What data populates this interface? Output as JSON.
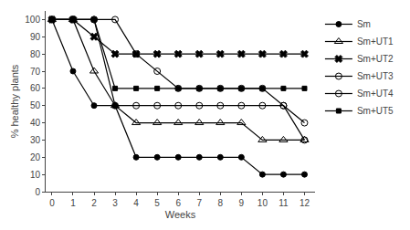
{
  "chart_data": {
    "type": "line",
    "x_label": "Weeks",
    "y_label": "% healthy plants",
    "x": [
      0,
      1,
      2,
      3,
      4,
      5,
      6,
      7,
      8,
      9,
      10,
      11,
      12
    ],
    "series": [
      {
        "name": "Sm",
        "color": "black",
        "marker": "circle",
        "line_style": "solid",
        "values": [
          100,
          70,
          50,
          50,
          20,
          20,
          20,
          20,
          20,
          20,
          10,
          10,
          10
        ]
      },
      {
        "name": "Sm+UT1",
        "color": "black",
        "marker": "triangle-up-open",
        "line_style": "solid",
        "values": [
          100,
          100,
          70,
          50,
          40,
          40,
          40,
          40,
          40,
          40,
          30,
          30,
          30
        ]
      },
      {
        "name": "Sm+UT2",
        "color": "black",
        "marker": "x",
        "line_style": "solid",
        "values": [
          100,
          100,
          90,
          80,
          80,
          80,
          80,
          80,
          80,
          80,
          80,
          80,
          80
        ]
      },
      {
        "name": "Sm+UT3",
        "color": "black",
        "marker": "circle-open",
        "line_style": "solid",
        "values": [
          100,
          100,
          100,
          100,
          80,
          70,
          60,
          60,
          60,
          60,
          60,
          50,
          40
        ]
      },
      {
        "name": "Sm+UT4",
        "color": "black",
        "marker": "circle-open",
        "line_style": "solid",
        "values": [
          100,
          100,
          100,
          50,
          50,
          50,
          50,
          50,
          50,
          50,
          50,
          50,
          30
        ]
      },
      {
        "name": "Sm+UT5",
        "color": "black",
        "marker": "square",
        "line_style": "solid",
        "values": [
          100,
          100,
          100,
          60,
          60,
          60,
          60,
          60,
          60,
          60,
          60,
          60,
          60
        ]
      }
    ],
    "xlim": [
      -0.3,
      12.5
    ],
    "ylim": [
      0,
      105
    ],
    "xticks": [
      0,
      1,
      2,
      3,
      4,
      5,
      6,
      7,
      8,
      9,
      10,
      11,
      12
    ],
    "yticks": [
      0,
      10,
      20,
      30,
      40,
      50,
      60,
      70,
      80,
      90,
      100
    ],
    "grid": false,
    "legend": "right"
  }
}
